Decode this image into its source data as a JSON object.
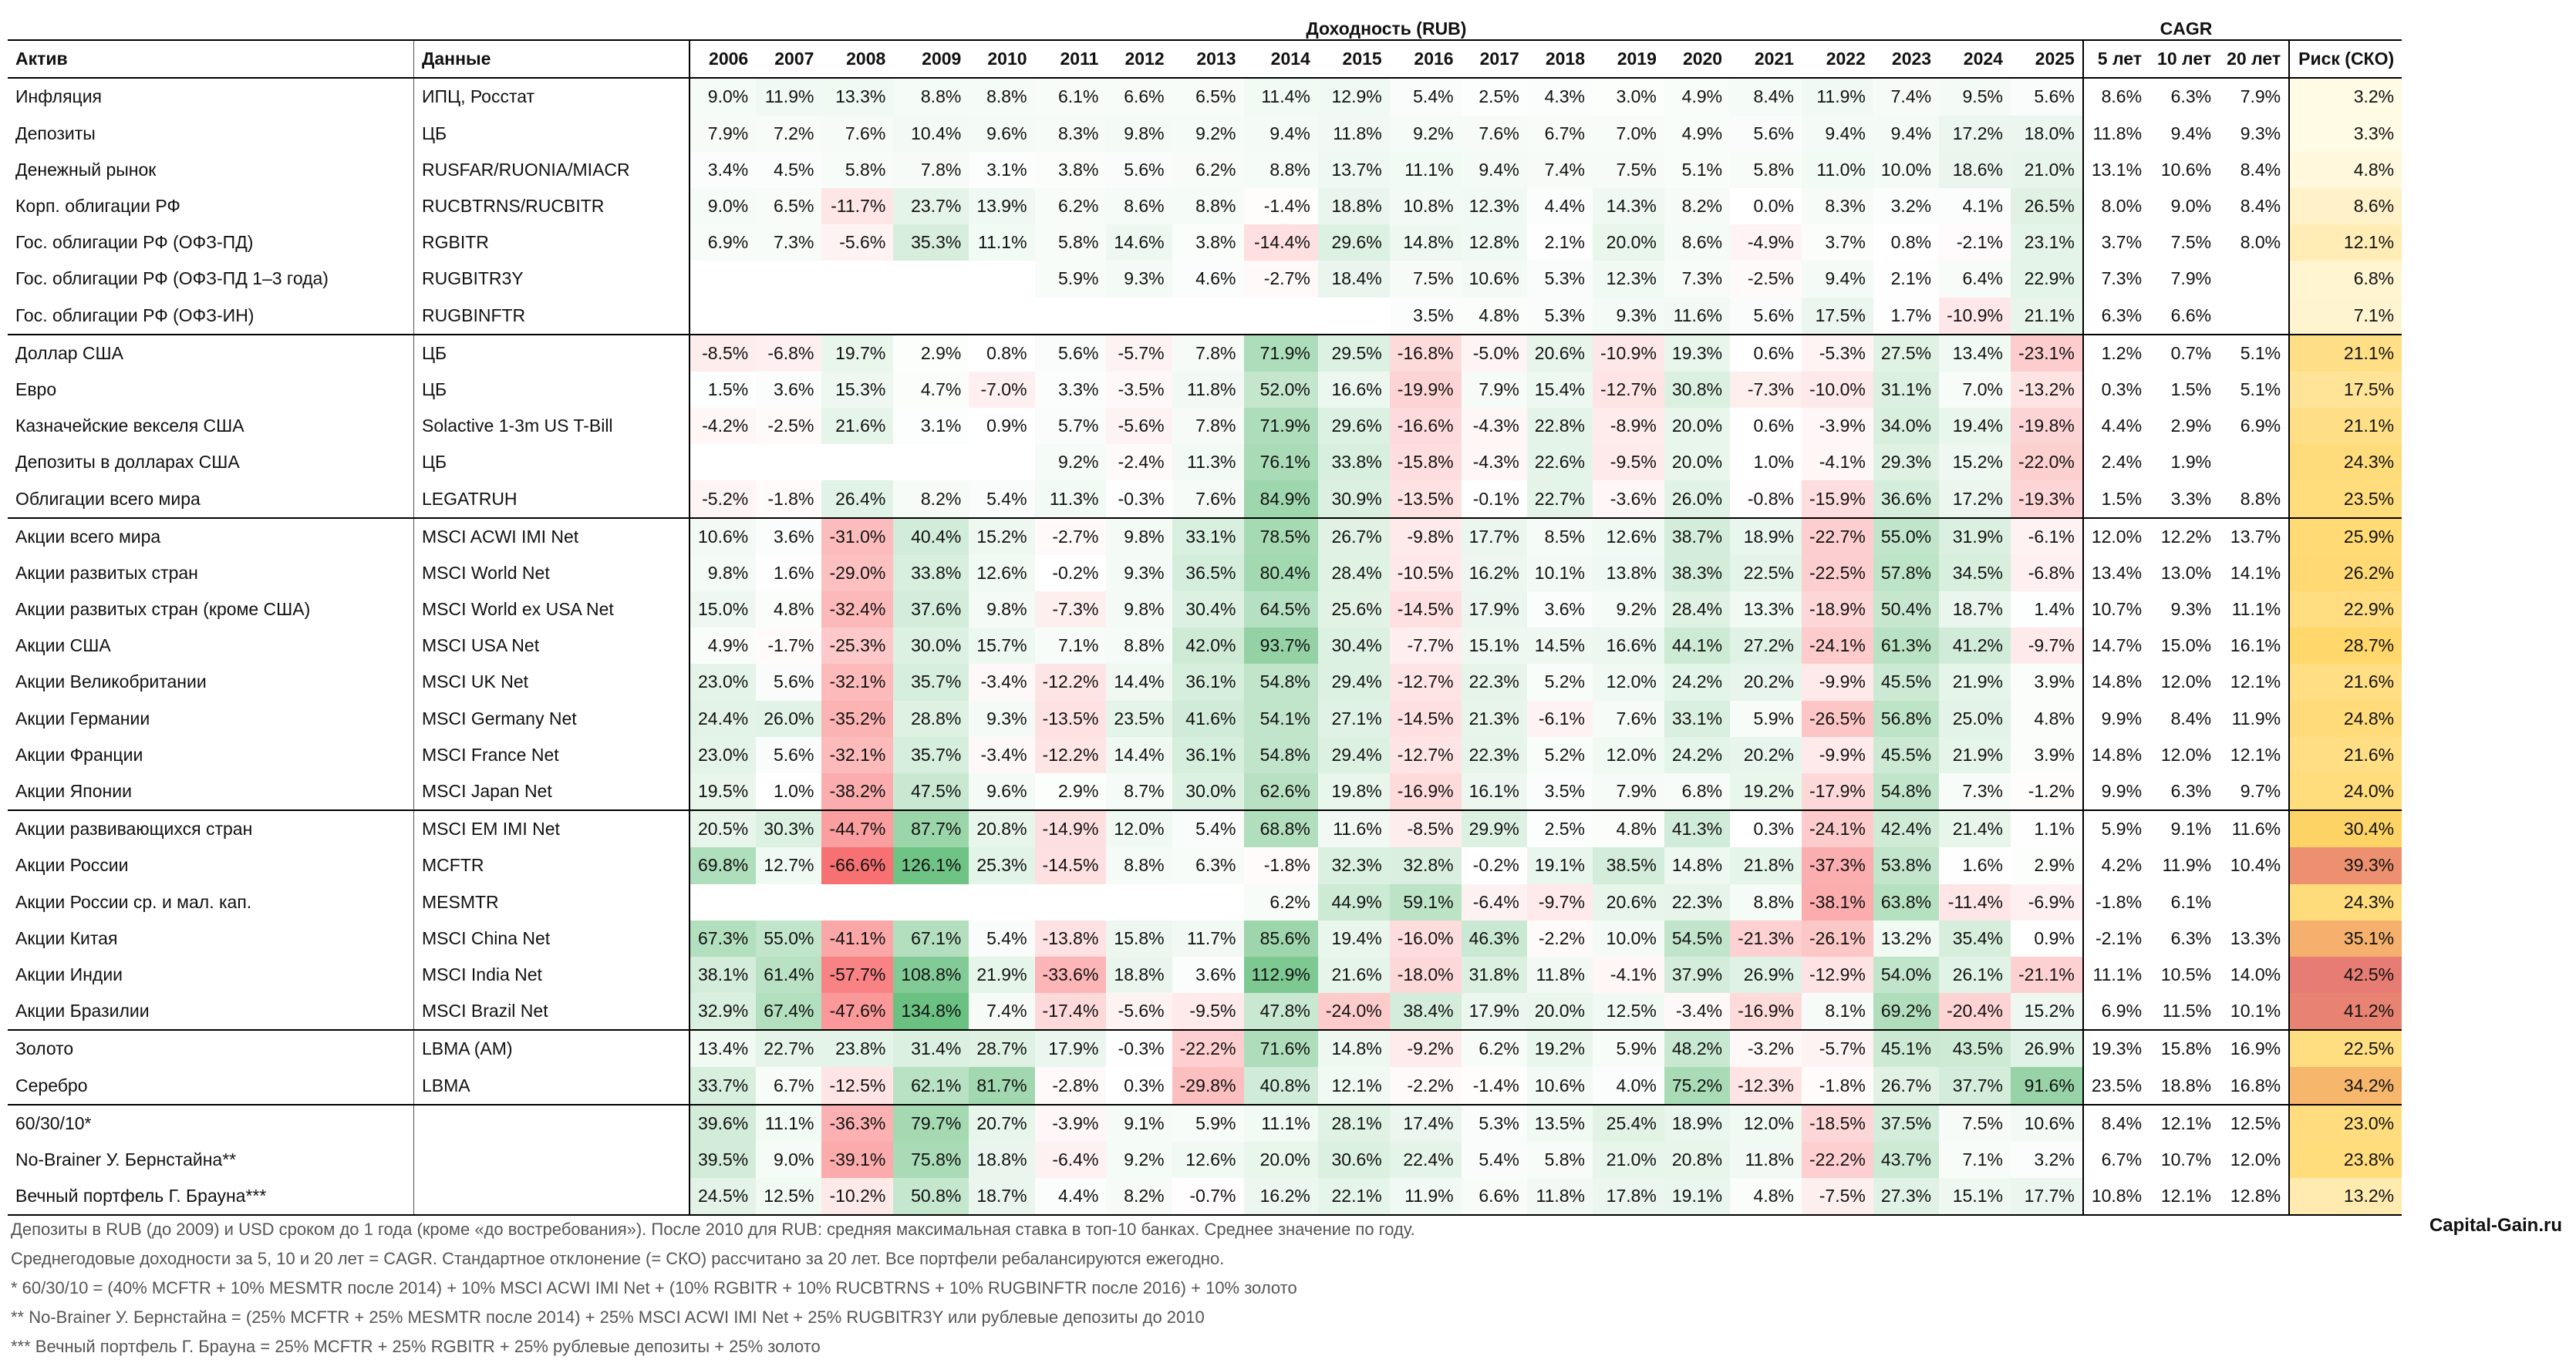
{
  "title_returns": "Доходность (RUB)",
  "title_cagr": "CAGR",
  "header": {
    "asset": "Актив",
    "source": "Данные",
    "years": [
      "2006",
      "2007",
      "2008",
      "2009",
      "2010",
      "2011",
      "2012",
      "2013",
      "2014",
      "2015",
      "2016",
      "2017",
      "2018",
      "2019",
      "2020",
      "2021",
      "2022",
      "2023",
      "2024",
      "2025"
    ],
    "cagr": [
      "5 лет",
      "10 лет",
      "20 лет"
    ],
    "risk": "Риск (СКО)"
  },
  "groups": [
    [
      {
        "asset": "Инфляция",
        "src": "ИПЦ, Росстат",
        "vals": [
          "9.0%",
          "11.9%",
          "13.3%",
          "8.8%",
          "8.8%",
          "6.1%",
          "6.6%",
          "6.5%",
          "11.4%",
          "12.9%",
          "5.4%",
          "2.5%",
          "4.3%",
          "3.0%",
          "4.9%",
          "8.4%",
          "11.9%",
          "7.4%",
          "9.5%",
          "5.6%"
        ],
        "cagr": [
          "8.6%",
          "6.3%",
          "7.9%"
        ],
        "risk": "3.2%"
      },
      {
        "asset": "Депозиты",
        "src": "ЦБ",
        "vals": [
          "7.9%",
          "7.2%",
          "7.6%",
          "10.4%",
          "9.6%",
          "8.3%",
          "9.8%",
          "9.2%",
          "9.4%",
          "11.8%",
          "9.2%",
          "7.6%",
          "6.7%",
          "7.0%",
          "4.9%",
          "5.6%",
          "9.4%",
          "9.4%",
          "17.2%",
          "18.0%"
        ],
        "cagr": [
          "11.8%",
          "9.4%",
          "9.3%"
        ],
        "risk": "3.3%"
      },
      {
        "asset": "Денежный рынок",
        "src": "RUSFAR/RUONIA/MIACR",
        "vals": [
          "3.4%",
          "4.5%",
          "5.8%",
          "7.8%",
          "3.1%",
          "3.8%",
          "5.6%",
          "6.2%",
          "8.8%",
          "13.7%",
          "11.1%",
          "9.4%",
          "7.4%",
          "7.5%",
          "5.1%",
          "5.8%",
          "11.0%",
          "10.0%",
          "18.6%",
          "21.0%"
        ],
        "cagr": [
          "13.1%",
          "10.6%",
          "8.4%"
        ],
        "risk": "4.8%"
      },
      {
        "asset": "Корп. облигации РФ",
        "src": "RUCBTRNS/RUCBITR",
        "vals": [
          "9.0%",
          "6.5%",
          "-11.7%",
          "23.7%",
          "13.9%",
          "6.2%",
          "8.6%",
          "8.8%",
          "-1.4%",
          "18.8%",
          "10.8%",
          "12.3%",
          "4.4%",
          "14.3%",
          "8.2%",
          "0.0%",
          "8.3%",
          "3.2%",
          "4.1%",
          "26.5%"
        ],
        "cagr": [
          "8.0%",
          "9.0%",
          "8.4%"
        ],
        "risk": "8.6%"
      },
      {
        "asset": "Гос. облигации РФ (ОФЗ-ПД)",
        "src": "RGBITR",
        "vals": [
          "6.9%",
          "7.3%",
          "-5.6%",
          "35.3%",
          "11.1%",
          "5.8%",
          "14.6%",
          "3.8%",
          "-14.4%",
          "29.6%",
          "14.8%",
          "12.8%",
          "2.1%",
          "20.0%",
          "8.6%",
          "-4.9%",
          "3.7%",
          "0.8%",
          "-2.1%",
          "23.1%"
        ],
        "cagr": [
          "3.7%",
          "7.5%",
          "8.0%"
        ],
        "risk": "12.1%"
      },
      {
        "asset": "Гос. облигации РФ (ОФЗ-ПД 1–3 года)",
        "src": "RUGBITR3Y",
        "vals": [
          "",
          "",
          "",
          "",
          "",
          "5.9%",
          "9.3%",
          "4.6%",
          "-2.7%",
          "18.4%",
          "7.5%",
          "10.6%",
          "5.3%",
          "12.3%",
          "7.3%",
          "-2.5%",
          "9.4%",
          "2.1%",
          "6.4%",
          "22.9%"
        ],
        "cagr": [
          "7.3%",
          "7.9%",
          ""
        ],
        "risk": "6.8%"
      },
      {
        "asset": "Гос. облигации РФ (ОФЗ-ИН)",
        "src": "RUGBINFTR",
        "vals": [
          "",
          "",
          "",
          "",
          "",
          "",
          "",
          "",
          "",
          "",
          "3.5%",
          "4.8%",
          "5.3%",
          "9.3%",
          "11.6%",
          "5.6%",
          "17.5%",
          "1.7%",
          "-10.9%",
          "21.1%"
        ],
        "cagr": [
          "6.3%",
          "6.6%",
          ""
        ],
        "risk": "7.1%"
      }
    ],
    [
      {
        "asset": "Доллар США",
        "src": "ЦБ",
        "vals": [
          "-8.5%",
          "-6.8%",
          "19.7%",
          "2.9%",
          "0.8%",
          "5.6%",
          "-5.7%",
          "7.8%",
          "71.9%",
          "29.5%",
          "-16.8%",
          "-5.0%",
          "20.6%",
          "-10.9%",
          "19.3%",
          "0.6%",
          "-5.3%",
          "27.5%",
          "13.4%",
          "-23.1%"
        ],
        "cagr": [
          "1.2%",
          "0.7%",
          "5.1%"
        ],
        "risk": "21.1%"
      },
      {
        "asset": "Евро",
        "src": "ЦБ",
        "vals": [
          "1.5%",
          "3.6%",
          "15.3%",
          "4.7%",
          "-7.0%",
          "3.3%",
          "-3.5%",
          "11.8%",
          "52.0%",
          "16.6%",
          "-19.9%",
          "7.9%",
          "15.4%",
          "-12.7%",
          "30.8%",
          "-7.3%",
          "-10.0%",
          "31.1%",
          "7.0%",
          "-13.2%"
        ],
        "cagr": [
          "0.3%",
          "1.5%",
          "5.1%"
        ],
        "risk": "17.5%"
      },
      {
        "asset": "Казначейские векселя США",
        "src": "Solactive 1-3m US T-Bill",
        "vals": [
          "-4.2%",
          "-2.5%",
          "21.6%",
          "3.1%",
          "0.9%",
          "5.7%",
          "-5.6%",
          "7.8%",
          "71.9%",
          "29.6%",
          "-16.6%",
          "-4.3%",
          "22.8%",
          "-8.9%",
          "20.0%",
          "0.6%",
          "-3.9%",
          "34.0%",
          "19.4%",
          "-19.8%"
        ],
        "cagr": [
          "4.4%",
          "2.9%",
          "6.9%"
        ],
        "risk": "21.1%"
      },
      {
        "asset": "Депозиты в долларах США",
        "src": "ЦБ",
        "vals": [
          "",
          "",
          "",
          "",
          "",
          "9.2%",
          "-2.4%",
          "11.3%",
          "76.1%",
          "33.8%",
          "-15.8%",
          "-4.3%",
          "22.6%",
          "-9.5%",
          "20.0%",
          "1.0%",
          "-4.1%",
          "29.3%",
          "15.2%",
          "-22.0%"
        ],
        "cagr": [
          "2.4%",
          "1.9%",
          ""
        ],
        "risk": "24.3%"
      },
      {
        "asset": "Облигации всего мира",
        "src": "LEGATRUH",
        "vals": [
          "-5.2%",
          "-1.8%",
          "26.4%",
          "8.2%",
          "5.4%",
          "11.3%",
          "-0.3%",
          "7.6%",
          "84.9%",
          "30.9%",
          "-13.5%",
          "-0.1%",
          "22.7%",
          "-3.6%",
          "26.0%",
          "-0.8%",
          "-15.9%",
          "36.6%",
          "17.2%",
          "-19.3%"
        ],
        "cagr": [
          "1.5%",
          "3.3%",
          "8.8%"
        ],
        "risk": "23.5%"
      }
    ],
    [
      {
        "asset": "Акции всего мира",
        "src": "MSCI ACWI IMI Net",
        "vals": [
          "10.6%",
          "3.6%",
          "-31.0%",
          "40.4%",
          "15.2%",
          "-2.7%",
          "9.8%",
          "33.1%",
          "78.5%",
          "26.7%",
          "-9.8%",
          "17.7%",
          "8.5%",
          "12.6%",
          "38.7%",
          "18.9%",
          "-22.7%",
          "55.0%",
          "31.9%",
          "-6.1%"
        ],
        "cagr": [
          "12.0%",
          "12.2%",
          "13.7%"
        ],
        "risk": "25.9%"
      },
      {
        "asset": "Акции развитых стран",
        "src": "MSCI World Net",
        "vals": [
          "9.8%",
          "1.6%",
          "-29.0%",
          "33.8%",
          "12.6%",
          "-0.2%",
          "9.3%",
          "36.5%",
          "80.4%",
          "28.4%",
          "-10.5%",
          "16.2%",
          "10.1%",
          "13.8%",
          "38.3%",
          "22.5%",
          "-22.5%",
          "57.8%",
          "34.5%",
          "-6.8%"
        ],
        "cagr": [
          "13.4%",
          "13.0%",
          "14.1%"
        ],
        "risk": "26.2%"
      },
      {
        "asset": "Акции развитых стран (кроме США)",
        "src": "MSCI World ex USA Net",
        "vals": [
          "15.0%",
          "4.8%",
          "-32.4%",
          "37.6%",
          "9.8%",
          "-7.3%",
          "9.8%",
          "30.4%",
          "64.5%",
          "25.6%",
          "-14.5%",
          "17.9%",
          "3.6%",
          "9.2%",
          "28.4%",
          "13.3%",
          "-18.9%",
          "50.4%",
          "18.7%",
          "1.4%"
        ],
        "cagr": [
          "10.7%",
          "9.3%",
          "11.1%"
        ],
        "risk": "22.9%"
      },
      {
        "asset": "Акции США",
        "src": "MSCI USA Net",
        "vals": [
          "4.9%",
          "-1.7%",
          "-25.3%",
          "30.0%",
          "15.7%",
          "7.1%",
          "8.8%",
          "42.0%",
          "93.7%",
          "30.4%",
          "-7.7%",
          "15.1%",
          "14.5%",
          "16.6%",
          "44.1%",
          "27.2%",
          "-24.1%",
          "61.3%",
          "41.2%",
          "-9.7%"
        ],
        "cagr": [
          "14.7%",
          "15.0%",
          "16.1%"
        ],
        "risk": "28.7%"
      },
      {
        "asset": "Акции Великобритании",
        "src": "MSCI UK Net",
        "vals": [
          "23.0%",
          "5.6%",
          "-32.1%",
          "35.7%",
          "-3.4%",
          "-12.2%",
          "14.4%",
          "36.1%",
          "54.8%",
          "29.4%",
          "-12.7%",
          "22.3%",
          "5.2%",
          "12.0%",
          "24.2%",
          "20.2%",
          "-9.9%",
          "45.5%",
          "21.9%",
          "3.9%"
        ],
        "cagr": [
          "14.8%",
          "12.0%",
          "12.1%"
        ],
        "risk": "21.6%"
      },
      {
        "asset": "Акции Германии",
        "src": "MSCI Germany Net",
        "vals": [
          "24.4%",
          "26.0%",
          "-35.2%",
          "28.8%",
          "9.3%",
          "-13.5%",
          "23.5%",
          "41.6%",
          "54.1%",
          "27.1%",
          "-14.5%",
          "21.3%",
          "-6.1%",
          "7.6%",
          "33.1%",
          "5.9%",
          "-26.5%",
          "56.8%",
          "25.0%",
          "4.8%"
        ],
        "cagr": [
          "9.9%",
          "8.4%",
          "11.9%"
        ],
        "risk": "24.8%"
      },
      {
        "asset": "Акции Франции",
        "src": "MSCI France Net",
        "vals": [
          "23.0%",
          "5.6%",
          "-32.1%",
          "35.7%",
          "-3.4%",
          "-12.2%",
          "14.4%",
          "36.1%",
          "54.8%",
          "29.4%",
          "-12.7%",
          "22.3%",
          "5.2%",
          "12.0%",
          "24.2%",
          "20.2%",
          "-9.9%",
          "45.5%",
          "21.9%",
          "3.9%"
        ],
        "cagr": [
          "14.8%",
          "12.0%",
          "12.1%"
        ],
        "risk": "21.6%"
      },
      {
        "asset": "Акции Японии",
        "src": "MSCI Japan Net",
        "vals": [
          "19.5%",
          "1.0%",
          "-38.2%",
          "47.5%",
          "9.6%",
          "2.9%",
          "8.7%",
          "30.0%",
          "62.6%",
          "19.8%",
          "-16.9%",
          "16.1%",
          "3.5%",
          "7.9%",
          "6.8%",
          "19.2%",
          "-17.9%",
          "54.8%",
          "7.3%",
          "-1.2%"
        ],
        "cagr": [
          "9.9%",
          "6.3%",
          "9.7%"
        ],
        "risk": "24.0%"
      }
    ],
    [
      {
        "asset": "Акции развивающихся стран",
        "src": "MSCI EM IMI Net",
        "vals": [
          "20.5%",
          "30.3%",
          "-44.7%",
          "87.7%",
          "20.8%",
          "-14.9%",
          "12.0%",
          "5.4%",
          "68.8%",
          "11.6%",
          "-8.5%",
          "29.9%",
          "2.5%",
          "4.8%",
          "41.3%",
          "0.3%",
          "-24.1%",
          "42.4%",
          "21.4%",
          "1.1%"
        ],
        "cagr": [
          "5.9%",
          "9.1%",
          "11.6%"
        ],
        "risk": "30.4%"
      },
      {
        "asset": "Акции России",
        "src": "MCFTR",
        "vals": [
          "69.8%",
          "12.7%",
          "-66.6%",
          "126.1%",
          "25.3%",
          "-14.5%",
          "8.8%",
          "6.3%",
          "-1.8%",
          "32.3%",
          "32.8%",
          "-0.2%",
          "19.1%",
          "38.5%",
          "14.8%",
          "21.8%",
          "-37.3%",
          "53.8%",
          "1.6%",
          "2.9%"
        ],
        "cagr": [
          "4.2%",
          "11.9%",
          "10.4%"
        ],
        "risk": "39.3%"
      },
      {
        "asset": "Акции России ср. и мал. кап.",
        "src": "MESMTR",
        "vals": [
          "",
          "",
          "",
          "",
          "",
          "",
          "",
          "",
          "6.2%",
          "44.9%",
          "59.1%",
          "-6.4%",
          "-9.7%",
          "20.6%",
          "22.3%",
          "8.8%",
          "-38.1%",
          "63.8%",
          "-11.4%",
          "-6.9%"
        ],
        "cagr": [
          "-1.8%",
          "6.1%",
          ""
        ],
        "risk": "24.3%"
      },
      {
        "asset": "Акции Китая",
        "src": "MSCI China Net",
        "vals": [
          "67.3%",
          "55.0%",
          "-41.1%",
          "67.1%",
          "5.4%",
          "-13.8%",
          "15.8%",
          "11.7%",
          "85.6%",
          "19.4%",
          "-16.0%",
          "46.3%",
          "-2.2%",
          "10.0%",
          "54.5%",
          "-21.3%",
          "-26.1%",
          "13.2%",
          "35.4%",
          "0.9%"
        ],
        "cagr": [
          "-2.1%",
          "6.3%",
          "13.3%"
        ],
        "risk": "35.1%"
      },
      {
        "asset": "Акции Индии",
        "src": "MSCI India Net",
        "vals": [
          "38.1%",
          "61.4%",
          "-57.7%",
          "108.8%",
          "21.9%",
          "-33.6%",
          "18.8%",
          "3.6%",
          "112.9%",
          "21.6%",
          "-18.0%",
          "31.8%",
          "11.8%",
          "-4.1%",
          "37.9%",
          "26.9%",
          "-12.9%",
          "54.0%",
          "26.1%",
          "-21.1%"
        ],
        "cagr": [
          "11.1%",
          "10.5%",
          "14.0%"
        ],
        "risk": "42.5%"
      },
      {
        "asset": "Акции Бразилии",
        "src": "MSCI Brazil Net",
        "vals": [
          "32.9%",
          "67.4%",
          "-47.6%",
          "134.8%",
          "7.4%",
          "-17.4%",
          "-5.6%",
          "-9.5%",
          "47.8%",
          "-24.0%",
          "38.4%",
          "17.9%",
          "20.0%",
          "12.5%",
          "-3.4%",
          "-16.9%",
          "8.1%",
          "69.2%",
          "-20.4%",
          "15.2%"
        ],
        "cagr": [
          "6.9%",
          "11.5%",
          "10.1%"
        ],
        "risk": "41.2%"
      }
    ],
    [
      {
        "asset": "Золото",
        "src": "LBMA (AM)",
        "vals": [
          "13.4%",
          "22.7%",
          "23.8%",
          "31.4%",
          "28.7%",
          "17.9%",
          "-0.3%",
          "-22.2%",
          "71.6%",
          "14.8%",
          "-9.2%",
          "6.2%",
          "19.2%",
          "5.9%",
          "48.2%",
          "-3.2%",
          "-5.7%",
          "45.1%",
          "43.5%",
          "26.9%"
        ],
        "cagr": [
          "19.3%",
          "15.8%",
          "16.9%"
        ],
        "risk": "22.5%"
      },
      {
        "asset": "Серебро",
        "src": "LBMA",
        "vals": [
          "33.7%",
          "6.7%",
          "-12.5%",
          "62.1%",
          "81.7%",
          "-2.8%",
          "0.3%",
          "-29.8%",
          "40.8%",
          "12.1%",
          "-2.2%",
          "-1.4%",
          "10.6%",
          "4.0%",
          "75.2%",
          "-12.3%",
          "-1.8%",
          "26.7%",
          "37.7%",
          "91.6%"
        ],
        "cagr": [
          "23.5%",
          "18.8%",
          "16.8%"
        ],
        "risk": "34.2%"
      }
    ],
    [
      {
        "asset": "60/30/10*",
        "src": "",
        "vals": [
          "39.6%",
          "11.1%",
          "-36.3%",
          "79.7%",
          "20.7%",
          "-3.9%",
          "9.1%",
          "5.9%",
          "11.1%",
          "28.1%",
          "17.4%",
          "5.3%",
          "13.5%",
          "25.4%",
          "18.9%",
          "12.0%",
          "-18.5%",
          "37.5%",
          "7.5%",
          "10.6%"
        ],
        "cagr": [
          "8.4%",
          "12.1%",
          "12.5%"
        ],
        "risk": "23.0%"
      },
      {
        "asset": "No-Brainer У. Бернстайна**",
        "src": "",
        "vals": [
          "39.5%",
          "9.0%",
          "-39.1%",
          "75.8%",
          "18.8%",
          "-6.4%",
          "9.2%",
          "12.6%",
          "20.0%",
          "30.6%",
          "22.4%",
          "5.4%",
          "5.8%",
          "21.0%",
          "20.8%",
          "11.8%",
          "-22.2%",
          "43.7%",
          "7.1%",
          "3.2%"
        ],
        "cagr": [
          "6.7%",
          "10.7%",
          "12.0%"
        ],
        "risk": "23.8%"
      },
      {
        "asset": "Вечный портфель Г. Брауна***",
        "src": "",
        "vals": [
          "24.5%",
          "12.5%",
          "-10.2%",
          "50.8%",
          "18.7%",
          "4.4%",
          "8.2%",
          "-0.7%",
          "16.2%",
          "22.1%",
          "11.9%",
          "6.6%",
          "11.8%",
          "17.8%",
          "19.1%",
          "4.8%",
          "-7.5%",
          "27.3%",
          "15.1%",
          "17.7%"
        ],
        "cagr": [
          "10.8%",
          "12.1%",
          "12.8%"
        ],
        "risk": "13.2%"
      }
    ]
  ],
  "notes": [
    "Депозиты в RUB (до 2009) и USD сроком до 1 года (кроме «до востребования»). После 2010 для RUB: средняя максимальная ставка в топ-10 банках. Среднее значение по году.",
    "Среднегодовые доходности за 5, 10 и 20 лет = CAGR. Стандартное отклонение (= СКО) рассчитано за 20 лет. Все портфели ребалансируются ежегодно.",
    "* 60/30/10 = (40% MCFTR + 10% MESMTR после 2014) + 10% MSCI ACWI IMI Net + (10% RGBITR + 10% RUCBTRNS + 10% RUGBINFTR после 2016) + 10% золото",
    "** No-Brainer У. Бернстайна = (25% MCFTR + 25% MESMTR после 2014) + 25% MSCI ACWI IMI Net + 25% RUGBITR3Y или рублевые депозиты до 2010",
    "*** Вечный портфель Г. Брауна = 25% MCFTR + 25% RGBITR + 25% рублевые депозиты + 25% золото"
  ],
  "brand": "Capital-Gain.ru",
  "colors": {
    "pos": "#63be7b",
    "neg": "#f8696b",
    "risk_low": "#fffbe6",
    "risk_mid": "#ffd666",
    "risk_high": "#e67c73"
  }
}
